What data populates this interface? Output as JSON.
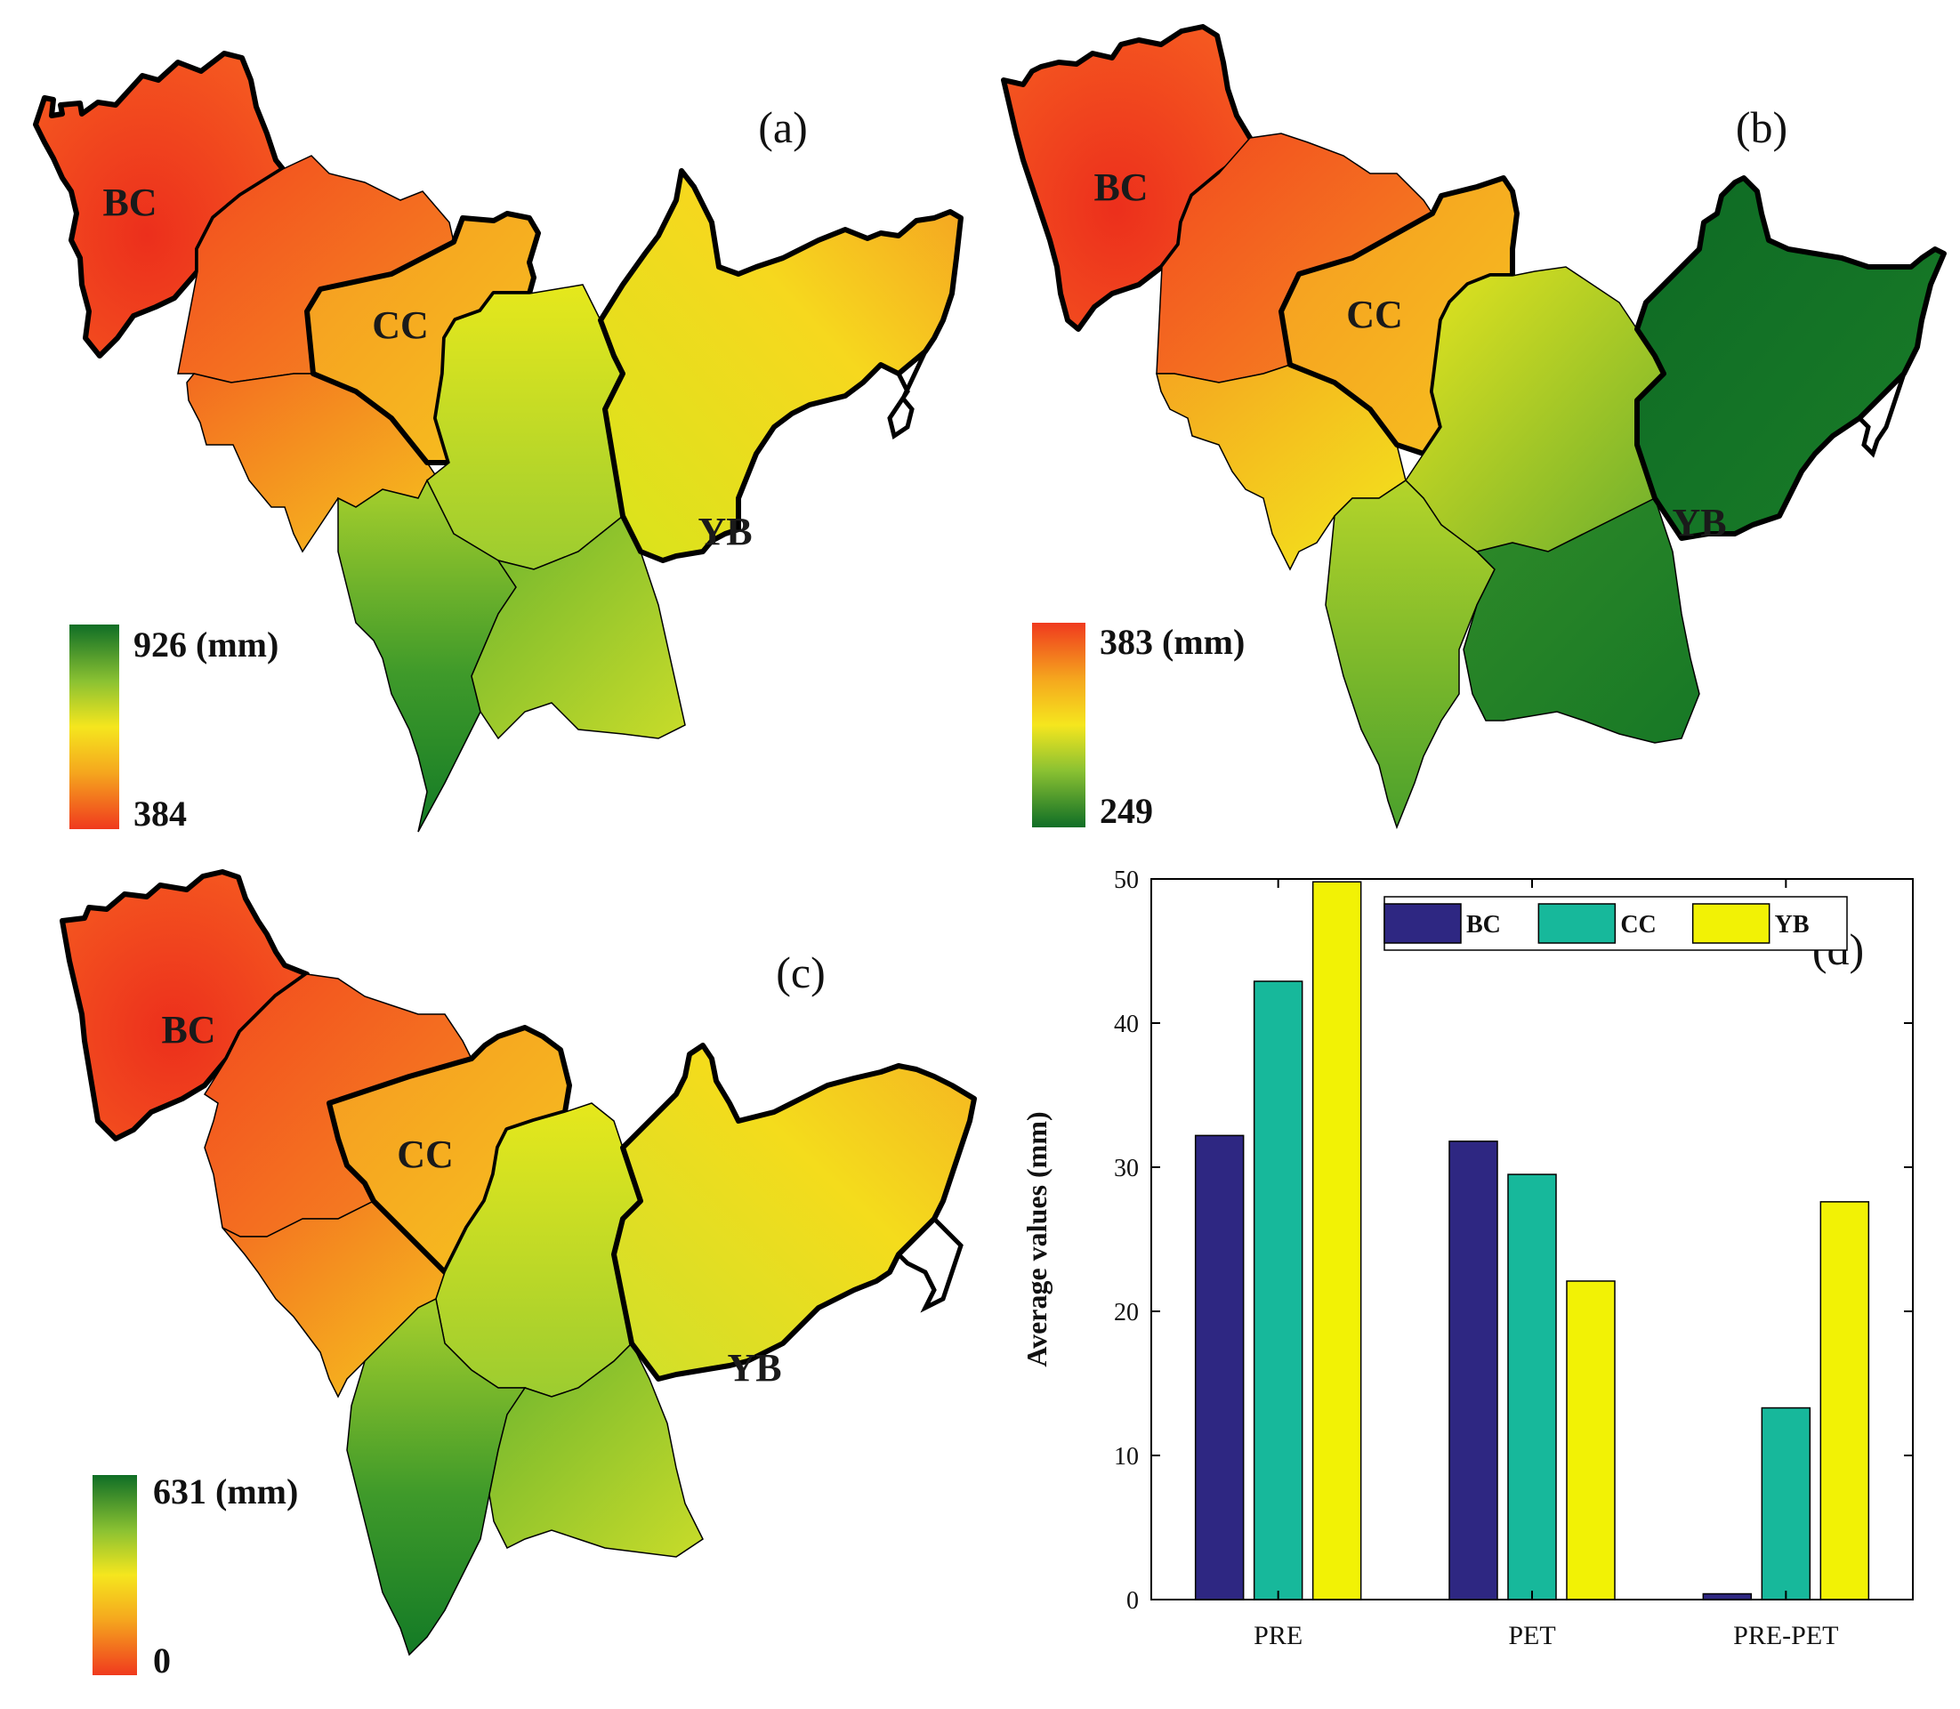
{
  "maps": [
    {
      "id": "a",
      "tag": "(a)",
      "legend": {
        "max": "926 (mm)",
        "min": "384",
        "scale": "red-to-green"
      },
      "regions": {
        "bc": "BC",
        "cc": "CC",
        "yb": "YB"
      }
    },
    {
      "id": "b",
      "tag": "(b)",
      "legend": {
        "max": "383 (mm)",
        "min": "249",
        "scale": "green-to-red"
      },
      "regions": {
        "bc": "BC",
        "cc": "CC",
        "yb": "YB"
      }
    },
    {
      "id": "c",
      "tag": "(c)",
      "legend": {
        "max": "631 (mm)",
        "min": "0",
        "scale": "red-to-green"
      },
      "regions": {
        "bc": "BC",
        "cc": "CC",
        "yb": "YB"
      }
    }
  ],
  "colors": {
    "red": "#f03a1e",
    "orange": "#f57f20",
    "yellow": "#f5e61e",
    "lime": "#c5dc1e",
    "green": "#3f9a2a",
    "darkgreen": "#0f6e26",
    "bc_bar": "#2e2782",
    "cc_bar": "#17b89b",
    "yb_bar": "#f2f205"
  },
  "chart_data": {
    "type": "bar",
    "tag": "(d)",
    "title": "",
    "xlabel": "",
    "ylabel": "Average values (mm)",
    "ylim": [
      0,
      50
    ],
    "yticks": [
      "0",
      "10",
      "20",
      "30",
      "40",
      "50"
    ],
    "categories": [
      "PRE",
      "PET",
      "PRE-PET"
    ],
    "series": [
      {
        "name": "BC",
        "values": [
          32.2,
          31.8,
          0.4
        ]
      },
      {
        "name": "CC",
        "values": [
          42.9,
          29.5,
          13.3
        ]
      },
      {
        "name": "YB",
        "values": [
          49.8,
          22.1,
          27.6
        ]
      }
    ],
    "legend_position": "top-right"
  }
}
